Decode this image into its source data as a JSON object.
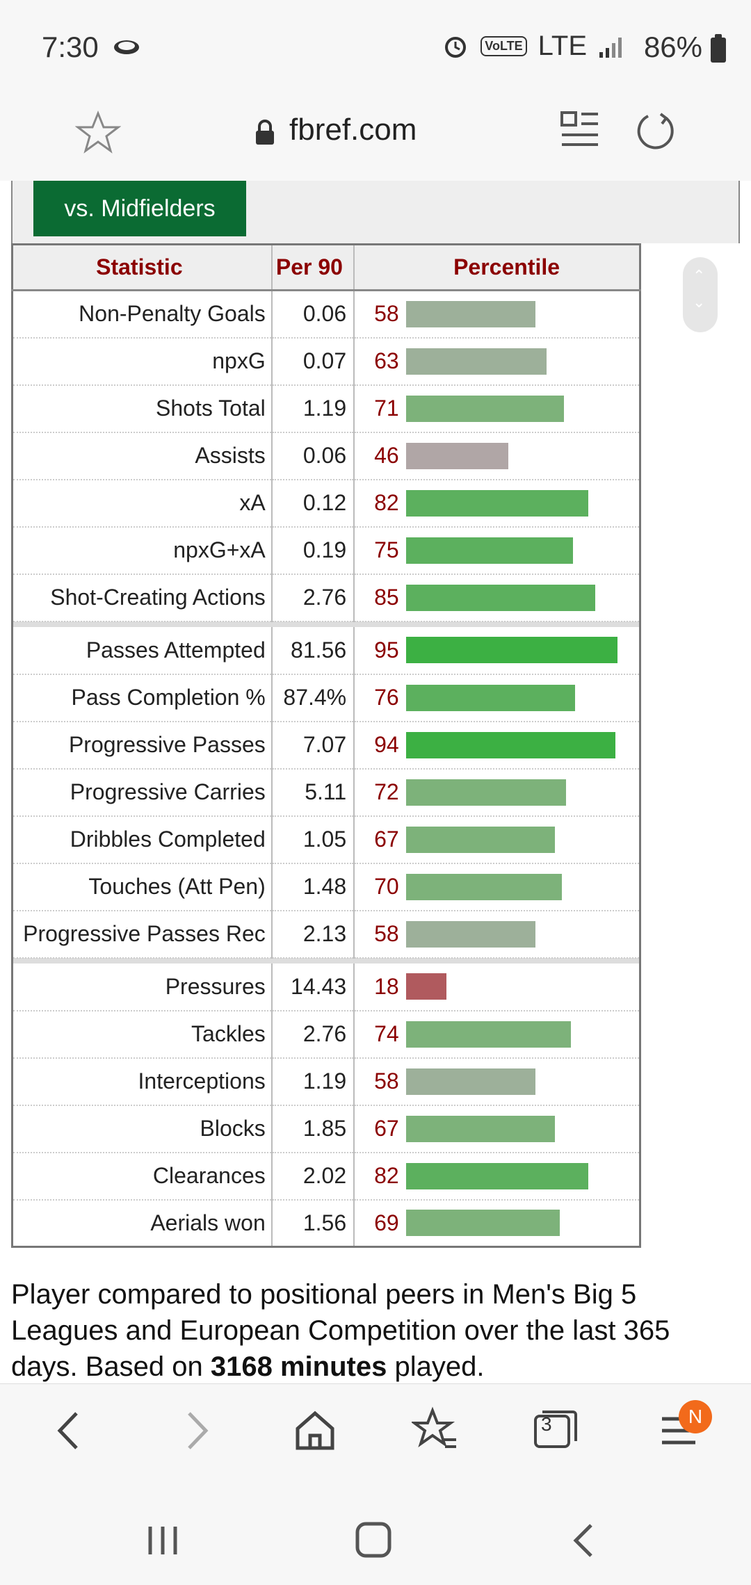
{
  "status_bar": {
    "time": "7:30",
    "battery": "86%",
    "network": "LTE",
    "volte": "VoLTE"
  },
  "url_bar": {
    "url": "fbref.com"
  },
  "filter": {
    "button_label": "vs. Midfielders"
  },
  "table": {
    "headers": {
      "statistic": "Statistic",
      "per90": "Per 90",
      "percentile": "Percentile"
    },
    "groups": [
      [
        {
          "stat": "Non-Penalty Goals",
          "per90": "0.06",
          "pct": 58
        },
        {
          "stat": "npxG",
          "per90": "0.07",
          "pct": 63
        },
        {
          "stat": "Shots Total",
          "per90": "1.19",
          "pct": 71
        },
        {
          "stat": "Assists",
          "per90": "0.06",
          "pct": 46
        },
        {
          "stat": "xA",
          "per90": "0.12",
          "pct": 82
        },
        {
          "stat": "npxG+xA",
          "per90": "0.19",
          "pct": 75
        },
        {
          "stat": "Shot-Creating Actions",
          "per90": "2.76",
          "pct": 85
        }
      ],
      [
        {
          "stat": "Passes Attempted",
          "per90": "81.56",
          "pct": 95
        },
        {
          "stat": "Pass Completion %",
          "per90": "87.4%",
          "pct": 76
        },
        {
          "stat": "Progressive Passes",
          "per90": "7.07",
          "pct": 94
        },
        {
          "stat": "Progressive Carries",
          "per90": "5.11",
          "pct": 72
        },
        {
          "stat": "Dribbles Completed",
          "per90": "1.05",
          "pct": 67
        },
        {
          "stat": "Touches (Att Pen)",
          "per90": "1.48",
          "pct": 70
        },
        {
          "stat": "Progressive Passes Rec",
          "per90": "2.13",
          "pct": 58
        }
      ],
      [
        {
          "stat": "Pressures",
          "per90": "14.43",
          "pct": 18
        },
        {
          "stat": "Tackles",
          "per90": "2.76",
          "pct": 74
        },
        {
          "stat": "Interceptions",
          "per90": "1.19",
          "pct": 58
        },
        {
          "stat": "Blocks",
          "per90": "1.85",
          "pct": 67
        },
        {
          "stat": "Clearances",
          "per90": "2.02",
          "pct": 82
        },
        {
          "stat": "Aerials won",
          "per90": "1.56",
          "pct": 69
        }
      ]
    ]
  },
  "caption": {
    "before": "Player compared to positional peers in Men's Big 5 Leagues and European Competition over the last 365 days. Based on ",
    "bold": "3168 minutes",
    "after": " played."
  },
  "browser_nav": {
    "tabs_count": "3",
    "notification_badge": "N"
  },
  "colors": {
    "filter_green": "#0b6b33",
    "header_red": "#8b0000",
    "bar_high": "#3cb043",
    "bar_mid": "#9db09a",
    "bar_low": "#b05a5e",
    "badge": "#f26a1b"
  }
}
